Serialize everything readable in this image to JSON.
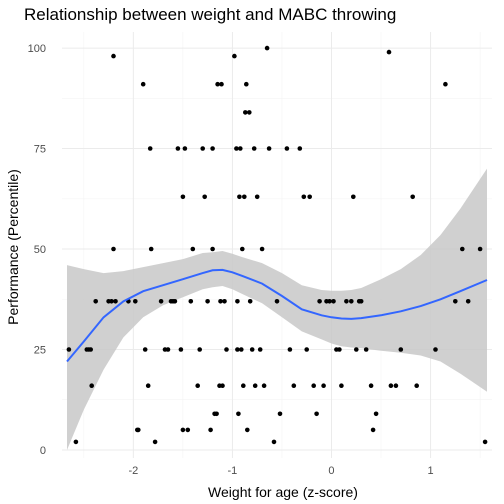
{
  "chart_data": {
    "type": "scatter",
    "title": "Relationship between weight and MABC throwing",
    "xlabel": "Weight for age (z-score)",
    "ylabel": "Performance (Percentile)",
    "xlim": [
      -2.72,
      1.62
    ],
    "ylim": [
      -2,
      104
    ],
    "x_ticks": [
      -2,
      -1,
      0,
      1
    ],
    "x_tick_labels": [
      "-2",
      "-1",
      "0",
      "1"
    ],
    "y_ticks": [
      0,
      25,
      50,
      75,
      100
    ],
    "y_tick_labels": [
      "0",
      "25",
      "50",
      "75",
      "100"
    ],
    "grid": true,
    "legend": "none",
    "point_color": "#000000",
    "smooth_color": "#3366ff",
    "band_color": "#c8c8c8",
    "points": [
      [
        -2.65,
        25
      ],
      [
        -2.58,
        2
      ],
      [
        -2.47,
        25
      ],
      [
        -2.45,
        25
      ],
      [
        -2.43,
        25
      ],
      [
        -2.42,
        16
      ],
      [
        -2.38,
        37
      ],
      [
        -2.25,
        37
      ],
      [
        -2.22,
        37
      ],
      [
        -2.2,
        98
      ],
      [
        -2.2,
        50
      ],
      [
        -2.18,
        37
      ],
      [
        -2.05,
        37
      ],
      [
        -1.98,
        37
      ],
      [
        -1.96,
        5
      ],
      [
        -1.95,
        5
      ],
      [
        -1.9,
        91
      ],
      [
        -1.88,
        25
      ],
      [
        -1.85,
        16
      ],
      [
        -1.83,
        75
      ],
      [
        -1.82,
        50
      ],
      [
        -1.78,
        2
      ],
      [
        -1.72,
        37
      ],
      [
        -1.68,
        25
      ],
      [
        -1.65,
        25
      ],
      [
        -1.62,
        37
      ],
      [
        -1.6,
        37
      ],
      [
        -1.58,
        37
      ],
      [
        -1.55,
        75
      ],
      [
        -1.52,
        25
      ],
      [
        -1.5,
        63
      ],
      [
        -1.5,
        5
      ],
      [
        -1.48,
        75
      ],
      [
        -1.45,
        5
      ],
      [
        -1.42,
        37
      ],
      [
        -1.4,
        50
      ],
      [
        -1.35,
        16
      ],
      [
        -1.33,
        25
      ],
      [
        -1.3,
        75
      ],
      [
        -1.28,
        63
      ],
      [
        -1.25,
        37
      ],
      [
        -1.22,
        5
      ],
      [
        -1.2,
        75
      ],
      [
        -1.2,
        50
      ],
      [
        -1.18,
        9
      ],
      [
        -1.16,
        9
      ],
      [
        -1.15,
        91
      ],
      [
        -1.13,
        16
      ],
      [
        -1.12,
        37
      ],
      [
        -1.11,
        91
      ],
      [
        -1.1,
        16
      ],
      [
        -1.08,
        37
      ],
      [
        -1.06,
        25
      ],
      [
        -0.98,
        98
      ],
      [
        -0.96,
        75
      ],
      [
        -0.95,
        37
      ],
      [
        -0.95,
        25
      ],
      [
        -0.94,
        9
      ],
      [
        -0.93,
        63
      ],
      [
        -0.92,
        75
      ],
      [
        -0.91,
        25
      ],
      [
        -0.9,
        50
      ],
      [
        -0.89,
        16
      ],
      [
        -0.88,
        63
      ],
      [
        -0.87,
        84
      ],
      [
        -0.86,
        91
      ],
      [
        -0.85,
        5
      ],
      [
        -0.83,
        84
      ],
      [
        -0.82,
        37
      ],
      [
        -0.8,
        25
      ],
      [
        -0.78,
        75
      ],
      [
        -0.77,
        16
      ],
      [
        -0.75,
        63
      ],
      [
        -0.72,
        25
      ],
      [
        -0.7,
        50
      ],
      [
        -0.68,
        16
      ],
      [
        -0.65,
        100
      ],
      [
        -0.63,
        75
      ],
      [
        -0.58,
        2
      ],
      [
        -0.55,
        37
      ],
      [
        -0.52,
        9
      ],
      [
        -0.45,
        75
      ],
      [
        -0.42,
        25
      ],
      [
        -0.38,
        16
      ],
      [
        -0.32,
        75
      ],
      [
        -0.28,
        63
      ],
      [
        -0.25,
        25
      ],
      [
        -0.22,
        63
      ],
      [
        -0.18,
        16
      ],
      [
        -0.15,
        9
      ],
      [
        -0.12,
        37
      ],
      [
        -0.08,
        16
      ],
      [
        -0.05,
        37
      ],
      [
        -0.02,
        37
      ],
      [
        0.02,
        37
      ],
      [
        0.05,
        25
      ],
      [
        0.08,
        25
      ],
      [
        0.1,
        16
      ],
      [
        0.15,
        37
      ],
      [
        0.2,
        37
      ],
      [
        0.22,
        63
      ],
      [
        0.25,
        25
      ],
      [
        0.28,
        37
      ],
      [
        0.3,
        37
      ],
      [
        0.35,
        25
      ],
      [
        0.4,
        16
      ],
      [
        0.42,
        5
      ],
      [
        0.45,
        9
      ],
      [
        0.58,
        99
      ],
      [
        0.6,
        16
      ],
      [
        0.65,
        16
      ],
      [
        0.7,
        25
      ],
      [
        0.82,
        63
      ],
      [
        0.86,
        16
      ],
      [
        1.05,
        25
      ],
      [
        1.15,
        91
      ],
      [
        1.25,
        37
      ],
      [
        1.32,
        50
      ],
      [
        1.38,
        37
      ],
      [
        1.5,
        50
      ],
      [
        1.55,
        2
      ]
    ],
    "smooth": {
      "x": [
        -2.67,
        -2.5,
        -2.3,
        -2.1,
        -1.9,
        -1.7,
        -1.5,
        -1.3,
        -1.2,
        -1.1,
        -1.0,
        -0.9,
        -0.7,
        -0.5,
        -0.3,
        -0.1,
        0.0,
        0.1,
        0.2,
        0.3,
        0.5,
        0.7,
        0.9,
        1.1,
        1.3,
        1.57
      ],
      "y": [
        22,
        27,
        33,
        37,
        39.5,
        41,
        42.5,
        44,
        44.7,
        44.8,
        44.2,
        43.3,
        41.4,
        38.3,
        35,
        33.5,
        33,
        32.7,
        32.6,
        32.8,
        33.5,
        34.5,
        35.8,
        37.5,
        39.5,
        42.3
      ],
      "lower": [
        0,
        10,
        20,
        28,
        33,
        36,
        38,
        40,
        40.5,
        40.8,
        40,
        38.8,
        36.5,
        33,
        29.5,
        27.5,
        26.5,
        25.8,
        25.5,
        25.3,
        24.7,
        24.2,
        23.5,
        22,
        19,
        14.5
      ],
      "upper": [
        46,
        45,
        44,
        44.5,
        45.5,
        46.5,
        47.5,
        49,
        49.2,
        49.5,
        48.8,
        48,
        46.5,
        44,
        41,
        39.8,
        39.6,
        39.6,
        39.8,
        40.3,
        42.5,
        45,
        48.5,
        53.5,
        60,
        70
      ]
    }
  }
}
